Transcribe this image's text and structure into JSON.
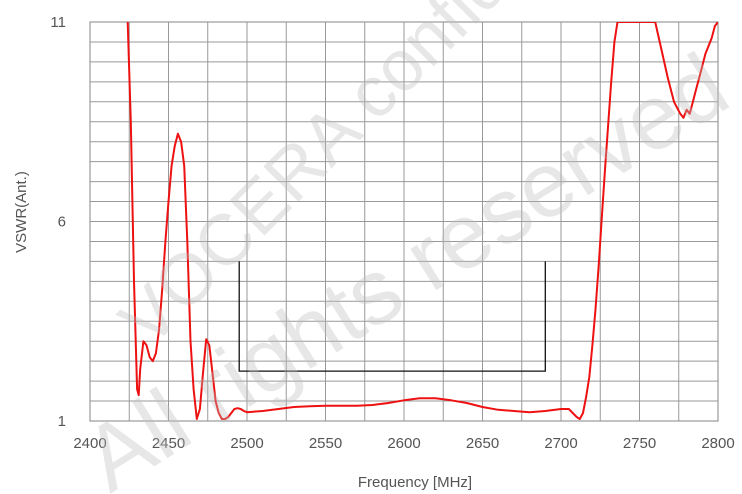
{
  "chart_data": {
    "type": "line",
    "xlabel": "Frequency [MHz]",
    "ylabel": "VSWR(Ant.)",
    "xlim": [
      2400,
      2800
    ],
    "ylim": [
      1,
      11
    ],
    "x_ticks": [
      2400,
      2450,
      2500,
      2550,
      2600,
      2650,
      2700,
      2750,
      2800
    ],
    "x_tick_labels": [
      "2400",
      "2450",
      "2500",
      "2550",
      "2600",
      "2650",
      "2700",
      "2750",
      "2800"
    ],
    "y_ticks": [
      1,
      6,
      11
    ],
    "y_tick_labels": [
      "1",
      "6",
      "11"
    ],
    "grid": true,
    "colors": {
      "series": "#ee1111",
      "grid": "#999999",
      "spec": "#111111"
    },
    "series": [
      {
        "x": [
          2424,
          2426,
          2428,
          2430,
          2431,
          2432,
          2434,
          2436,
          2438,
          2440,
          2442,
          2444,
          2446,
          2448,
          2450,
          2452,
          2454,
          2456,
          2458,
          2460,
          2462,
          2464,
          2466,
          2468,
          2470,
          2472,
          2474,
          2476,
          2478,
          2480,
          2482,
          2484,
          2486,
          2488,
          2490,
          2492,
          2494,
          2496,
          2498,
          2500,
          2510,
          2520,
          2530,
          2540,
          2550,
          2560,
          2570,
          2580,
          2590,
          2600,
          2610,
          2620,
          2630,
          2640,
          2650,
          2660,
          2670,
          2680,
          2690,
          2700,
          2705,
          2710,
          2712,
          2714,
          2716,
          2718,
          2720,
          2722,
          2724,
          2726,
          2728,
          2730,
          2732,
          2734,
          2736,
          2738,
          2760,
          2764,
          2768,
          2772,
          2776,
          2778,
          2780,
          2782,
          2784,
          2786,
          2788,
          2790,
          2792,
          2794,
          2796,
          2798,
          2800
        ],
        "y": [
          11.0,
          8.5,
          4.5,
          1.8,
          1.65,
          2.3,
          3.0,
          2.9,
          2.6,
          2.5,
          2.7,
          3.3,
          4.3,
          5.5,
          6.5,
          7.4,
          7.9,
          8.2,
          8.0,
          7.4,
          5.5,
          3.0,
          1.8,
          1.05,
          1.3,
          2.2,
          3.05,
          2.9,
          2.2,
          1.5,
          1.2,
          1.05,
          1.05,
          1.1,
          1.2,
          1.3,
          1.32,
          1.3,
          1.25,
          1.22,
          1.25,
          1.3,
          1.35,
          1.37,
          1.38,
          1.38,
          1.38,
          1.4,
          1.45,
          1.52,
          1.57,
          1.57,
          1.52,
          1.45,
          1.35,
          1.28,
          1.25,
          1.22,
          1.25,
          1.3,
          1.3,
          1.1,
          1.05,
          1.2,
          1.6,
          2.1,
          2.9,
          3.8,
          4.9,
          6.1,
          7.3,
          8.4,
          9.5,
          10.5,
          11.0,
          11.0,
          11.0,
          10.3,
          9.6,
          9.0,
          8.7,
          8.6,
          8.8,
          8.7,
          9.0,
          9.3,
          9.6,
          9.9,
          10.2,
          10.4,
          10.6,
          10.9,
          11.0
        ]
      }
    ],
    "spec_limit": {
      "x": [
        2495,
        2495,
        2690,
        2690
      ],
      "y": [
        5.0,
        2.25,
        2.25,
        5.0
      ]
    }
  },
  "watermark": {
    "lines": [
      "VOCERA confidential",
      "All rights reserved"
    ]
  }
}
